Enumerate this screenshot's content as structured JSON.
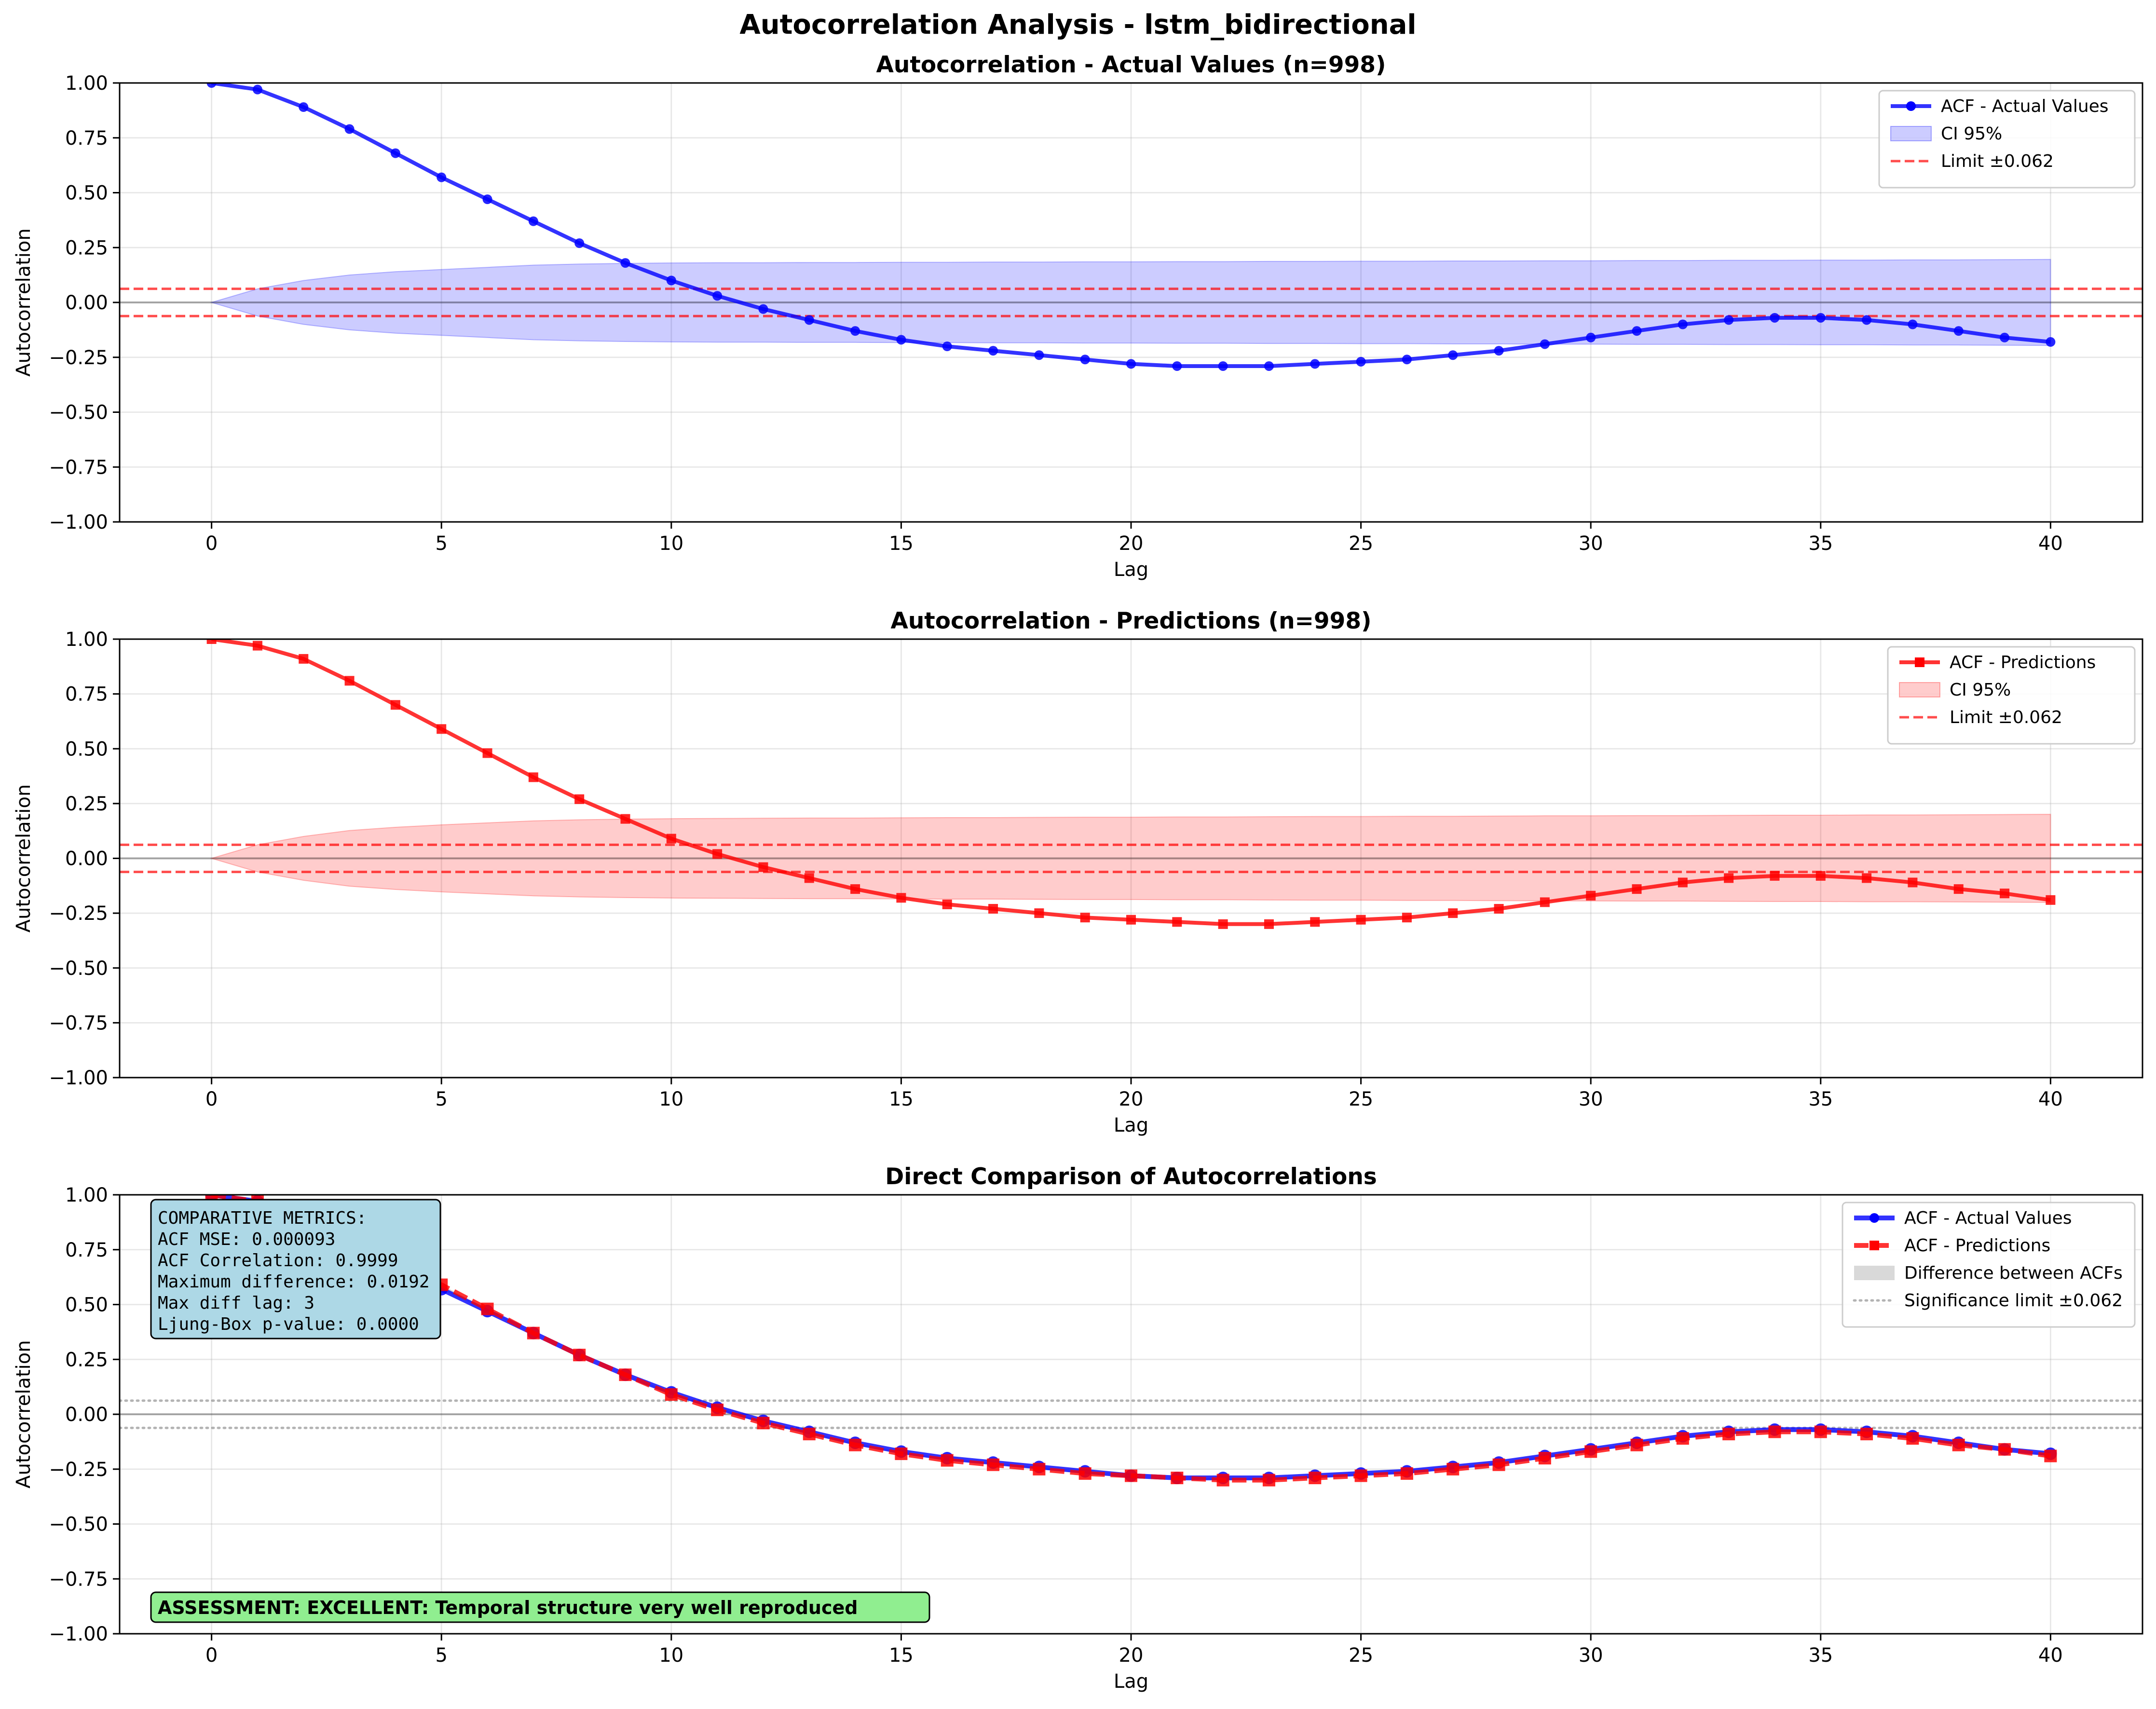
{
  "figure": {
    "suptitle": "Autocorrelation Analysis - lstm_bidirectional"
  },
  "colors": {
    "actual": "#0000ff",
    "predictions": "#ff0000",
    "limit": "#ff0000",
    "significance": "#808080",
    "metrics_box": "#add8e6",
    "assessment_box": "#90ee90"
  },
  "chart_data": [
    {
      "type": "line",
      "title": "Autocorrelation - Actual Values (n=998)",
      "xlabel": "Lag",
      "ylabel": "Autocorrelation",
      "xlim": [
        -2,
        42
      ],
      "ylim": [
        -1,
        1
      ],
      "xticks": [
        "0",
        "5",
        "10",
        "15",
        "20",
        "25",
        "30",
        "35",
        "40"
      ],
      "yticks": [
        "1.00",
        "0.75",
        "0.50",
        "0.25",
        "0.00",
        "−0.25",
        "−0.50",
        "−0.75",
        "−1.00"
      ],
      "grid": true,
      "legend_position": "top-right",
      "legend": [
        "ACF - Actual Values",
        "CI 95%",
        "Limit ±0.062"
      ],
      "significance_limit": 0.062,
      "x": [
        0,
        1,
        2,
        3,
        4,
        5,
        6,
        7,
        8,
        9,
        10,
        11,
        12,
        13,
        14,
        15,
        16,
        17,
        18,
        19,
        20,
        21,
        22,
        23,
        24,
        25,
        26,
        27,
        28,
        29,
        30,
        31,
        32,
        33,
        34,
        35,
        36,
        37,
        38,
        39,
        40
      ],
      "series": [
        {
          "name": "ACF - Actual Values",
          "marker": "circle",
          "values": [
            1.0,
            0.97,
            0.89,
            0.79,
            0.68,
            0.57,
            0.47,
            0.37,
            0.27,
            0.18,
            0.1,
            0.03,
            -0.03,
            -0.08,
            -0.13,
            -0.17,
            -0.2,
            -0.22,
            -0.24,
            -0.26,
            -0.28,
            -0.29,
            -0.29,
            -0.29,
            -0.28,
            -0.27,
            -0.26,
            -0.24,
            -0.22,
            -0.19,
            -0.16,
            -0.13,
            -0.1,
            -0.08,
            -0.07,
            -0.07,
            -0.08,
            -0.1,
            -0.13,
            -0.16,
            -0.18
          ]
        }
      ],
      "ci95": [
        0,
        0.062,
        0.1,
        0.125,
        0.14,
        0.15,
        0.16,
        0.17,
        0.175,
        0.178,
        0.18,
        0.181,
        0.181,
        0.182,
        0.182,
        0.183,
        0.183,
        0.184,
        0.184,
        0.185,
        0.185,
        0.186,
        0.186,
        0.187,
        0.187,
        0.188,
        0.188,
        0.189,
        0.189,
        0.19,
        0.19,
        0.191,
        0.191,
        0.192,
        0.192,
        0.193,
        0.193,
        0.194,
        0.194,
        0.195,
        0.196
      ]
    },
    {
      "type": "line",
      "title": "Autocorrelation - Predictions (n=998)",
      "xlabel": "Lag",
      "ylabel": "Autocorrelation",
      "xlim": [
        -2,
        42
      ],
      "ylim": [
        -1,
        1
      ],
      "xticks": [
        "0",
        "5",
        "10",
        "15",
        "20",
        "25",
        "30",
        "35",
        "40"
      ],
      "yticks": [
        "1.00",
        "0.75",
        "0.50",
        "0.25",
        "0.00",
        "−0.25",
        "−0.50",
        "−0.75",
        "−1.00"
      ],
      "grid": true,
      "legend_position": "top-right",
      "legend": [
        "ACF - Predictions",
        "CI 95%",
        "Limit ±0.062"
      ],
      "significance_limit": 0.062,
      "x": [
        0,
        1,
        2,
        3,
        4,
        5,
        6,
        7,
        8,
        9,
        10,
        11,
        12,
        13,
        14,
        15,
        16,
        17,
        18,
        19,
        20,
        21,
        22,
        23,
        24,
        25,
        26,
        27,
        28,
        29,
        30,
        31,
        32,
        33,
        34,
        35,
        36,
        37,
        38,
        39,
        40
      ],
      "series": [
        {
          "name": "ACF - Predictions",
          "marker": "square",
          "values": [
            1.0,
            0.97,
            0.91,
            0.81,
            0.7,
            0.59,
            0.48,
            0.37,
            0.27,
            0.18,
            0.09,
            0.02,
            -0.04,
            -0.09,
            -0.14,
            -0.18,
            -0.21,
            -0.23,
            -0.25,
            -0.27,
            -0.28,
            -0.29,
            -0.3,
            -0.3,
            -0.29,
            -0.28,
            -0.27,
            -0.25,
            -0.23,
            -0.2,
            -0.17,
            -0.14,
            -0.11,
            -0.09,
            -0.08,
            -0.08,
            -0.09,
            -0.11,
            -0.14,
            -0.16,
            -0.19
          ]
        }
      ],
      "ci95": [
        0,
        0.062,
        0.1,
        0.127,
        0.142,
        0.153,
        0.162,
        0.171,
        0.176,
        0.179,
        0.181,
        0.182,
        0.183,
        0.184,
        0.184,
        0.185,
        0.186,
        0.186,
        0.187,
        0.188,
        0.188,
        0.189,
        0.189,
        0.19,
        0.191,
        0.191,
        0.192,
        0.192,
        0.193,
        0.194,
        0.194,
        0.195,
        0.195,
        0.196,
        0.197,
        0.197,
        0.198,
        0.198,
        0.199,
        0.2,
        0.201
      ]
    },
    {
      "type": "line",
      "title": "Direct Comparison of Autocorrelations",
      "xlabel": "Lag",
      "ylabel": "Autocorrelation",
      "xlim": [
        -2,
        42
      ],
      "ylim": [
        -1,
        1
      ],
      "xticks": [
        "0",
        "5",
        "10",
        "15",
        "20",
        "25",
        "30",
        "35",
        "40"
      ],
      "yticks": [
        "1.00",
        "0.75",
        "0.50",
        "0.25",
        "0.00",
        "−0.25",
        "−0.50",
        "−0.75",
        "−1.00"
      ],
      "grid": true,
      "legend_position": "top-right",
      "legend": [
        "ACF - Actual Values",
        "ACF - Predictions",
        "Difference between ACFs",
        "Significance limit ±0.062"
      ],
      "significance_limit": 0.062,
      "x": [
        0,
        1,
        2,
        3,
        4,
        5,
        6,
        7,
        8,
        9,
        10,
        11,
        12,
        13,
        14,
        15,
        16,
        17,
        18,
        19,
        20,
        21,
        22,
        23,
        24,
        25,
        26,
        27,
        28,
        29,
        30,
        31,
        32,
        33,
        34,
        35,
        36,
        37,
        38,
        39,
        40
      ],
      "series": [
        {
          "name": "ACF - Actual Values",
          "marker": "circle",
          "values": [
            1.0,
            0.97,
            0.89,
            0.79,
            0.68,
            0.57,
            0.47,
            0.37,
            0.27,
            0.18,
            0.1,
            0.03,
            -0.03,
            -0.08,
            -0.13,
            -0.17,
            -0.2,
            -0.22,
            -0.24,
            -0.26,
            -0.28,
            -0.29,
            -0.29,
            -0.29,
            -0.28,
            -0.27,
            -0.26,
            -0.24,
            -0.22,
            -0.19,
            -0.16,
            -0.13,
            -0.1,
            -0.08,
            -0.07,
            -0.07,
            -0.08,
            -0.1,
            -0.13,
            -0.16,
            -0.18
          ]
        },
        {
          "name": "ACF - Predictions",
          "marker": "square",
          "values": [
            1.0,
            0.97,
            0.91,
            0.81,
            0.7,
            0.59,
            0.48,
            0.37,
            0.27,
            0.18,
            0.09,
            0.02,
            -0.04,
            -0.09,
            -0.14,
            -0.18,
            -0.21,
            -0.23,
            -0.25,
            -0.27,
            -0.28,
            -0.29,
            -0.3,
            -0.3,
            -0.29,
            -0.28,
            -0.27,
            -0.25,
            -0.23,
            -0.2,
            -0.17,
            -0.14,
            -0.11,
            -0.09,
            -0.08,
            -0.08,
            -0.09,
            -0.11,
            -0.14,
            -0.16,
            -0.19
          ]
        }
      ],
      "metrics_text": [
        "COMPARATIVE METRICS:",
        "ACF MSE: 0.000093",
        "ACF Correlation: 0.9999",
        "Maximum difference: 0.0192",
        "Max diff lag: 3",
        "Ljung-Box p-value: 0.0000"
      ],
      "assessment": "ASSESSMENT: EXCELLENT: Temporal structure very well reproduced"
    }
  ]
}
